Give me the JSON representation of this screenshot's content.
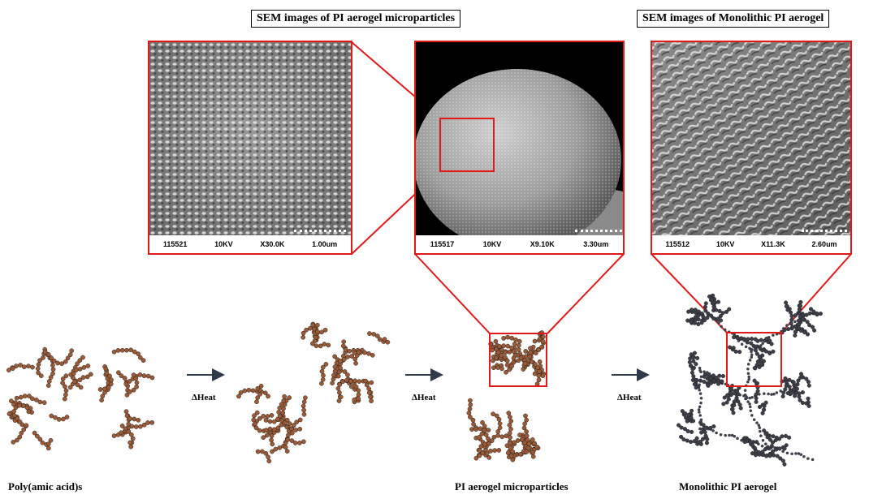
{
  "titles": {
    "microparticles": "SEM images of PI aerogel microparticles",
    "monolithic": "SEM images of  Monolithic PI aerogel"
  },
  "sem": {
    "zoom": {
      "id": "115521",
      "kv": "10KV",
      "mag": "X30.0K",
      "scale": "1.00um"
    },
    "particle": {
      "id": "115517",
      "kv": "10KV",
      "mag": "X9.10K",
      "scale": "3.30um"
    },
    "monolith": {
      "id": "115512",
      "kv": "10KV",
      "mag": "X11.3K",
      "scale": "2.60um"
    }
  },
  "process": {
    "heat_label": "ΔHeat",
    "stage_labels": [
      "Poly(amic acid)s",
      "PI aerogel microparticles",
      "Monolithic PI aerogel"
    ]
  },
  "colors": {
    "highlight": "#e0191b",
    "paa_bead": "#9c5a36",
    "pi_bead": "#3d3f4a",
    "arrow": "#2f3a4a"
  }
}
